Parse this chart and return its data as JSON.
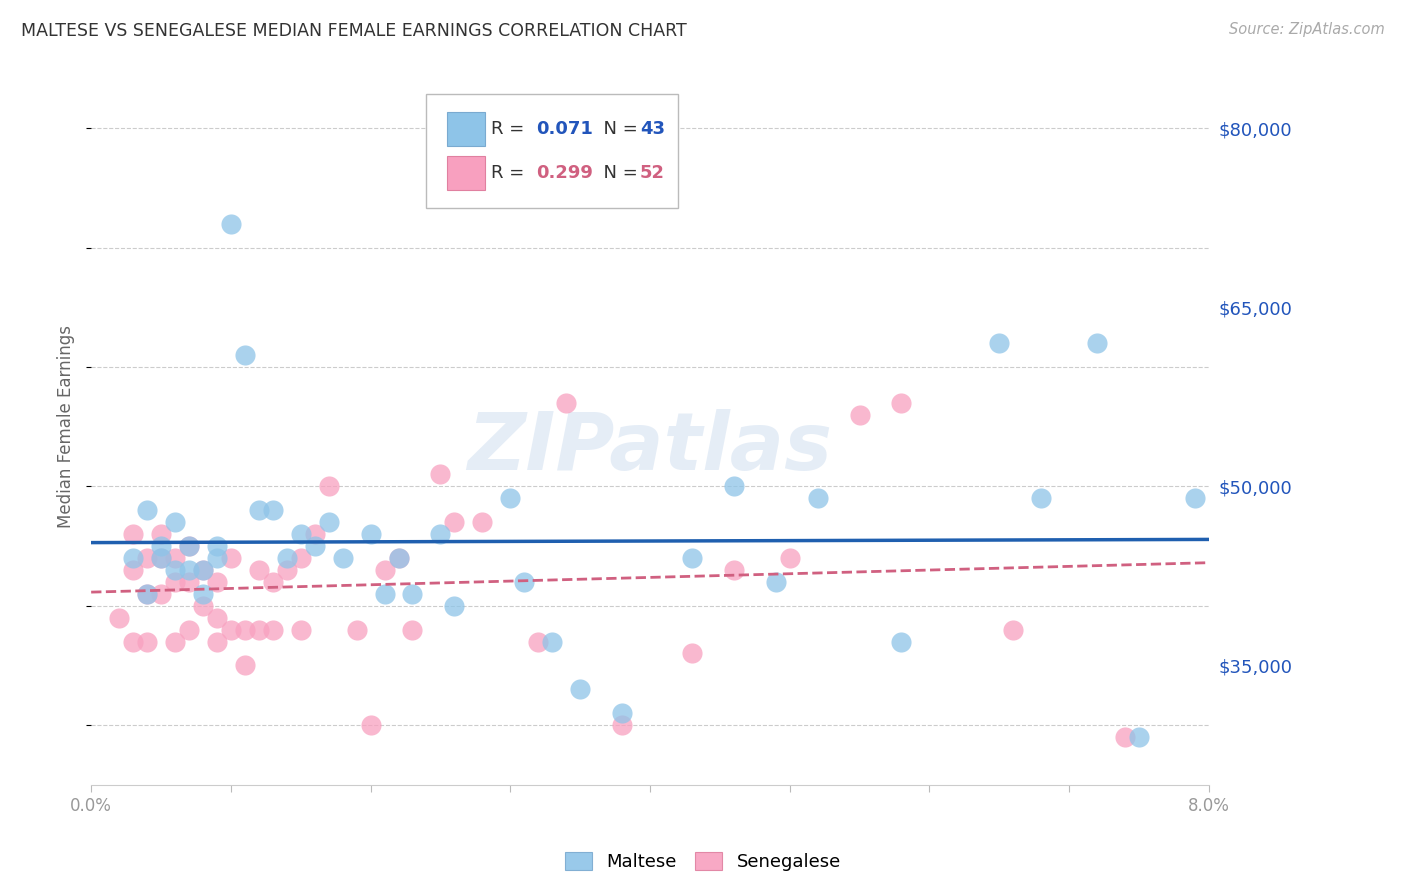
{
  "title": "MALTESE VS SENEGALESE MEDIAN FEMALE EARNINGS CORRELATION CHART",
  "source": "Source: ZipAtlas.com",
  "ylabel": "Median Female Earnings",
  "yticks": [
    35000,
    50000,
    65000,
    80000
  ],
  "ytick_labels": [
    "$35,000",
    "$50,000",
    "$65,000",
    "$80,000"
  ],
  "legend_r1": "0.071",
  "legend_n1": "43",
  "legend_r2": "0.299",
  "legend_n2": "52",
  "maltese_color": "#8ec4e8",
  "senegalese_color": "#f8a0bf",
  "trendline_maltese_color": "#1f5faf",
  "trendline_senegalese_color": "#d06080",
  "ylabel_color": "#666666",
  "ytick_color": "#2255bb",
  "xtick_color": "#999999",
  "title_color": "#333333",
  "source_color": "#aaaaaa",
  "watermark_color": "#d0dff0",
  "maltese_x": [
    0.003,
    0.004,
    0.004,
    0.005,
    0.005,
    0.006,
    0.006,
    0.007,
    0.007,
    0.008,
    0.008,
    0.009,
    0.009,
    0.01,
    0.011,
    0.012,
    0.013,
    0.014,
    0.015,
    0.016,
    0.017,
    0.018,
    0.02,
    0.021,
    0.022,
    0.023,
    0.025,
    0.026,
    0.03,
    0.031,
    0.033,
    0.035,
    0.038,
    0.043,
    0.046,
    0.049,
    0.052,
    0.058,
    0.065,
    0.068,
    0.072,
    0.075,
    0.079
  ],
  "maltese_y": [
    44000,
    48000,
    41000,
    45000,
    44000,
    47000,
    43000,
    43000,
    45000,
    43000,
    41000,
    45000,
    44000,
    72000,
    61000,
    48000,
    48000,
    44000,
    46000,
    45000,
    47000,
    44000,
    46000,
    41000,
    44000,
    41000,
    46000,
    40000,
    49000,
    42000,
    37000,
    33000,
    31000,
    44000,
    50000,
    42000,
    49000,
    37000,
    62000,
    49000,
    62000,
    29000,
    49000
  ],
  "senegalese_x": [
    0.002,
    0.003,
    0.003,
    0.003,
    0.004,
    0.004,
    0.004,
    0.005,
    0.005,
    0.005,
    0.006,
    0.006,
    0.006,
    0.007,
    0.007,
    0.007,
    0.008,
    0.008,
    0.009,
    0.009,
    0.009,
    0.01,
    0.01,
    0.011,
    0.011,
    0.012,
    0.012,
    0.013,
    0.013,
    0.014,
    0.015,
    0.015,
    0.016,
    0.017,
    0.019,
    0.02,
    0.021,
    0.022,
    0.023,
    0.025,
    0.026,
    0.028,
    0.032,
    0.034,
    0.038,
    0.043,
    0.046,
    0.05,
    0.055,
    0.058,
    0.066,
    0.074
  ],
  "senegalese_y": [
    39000,
    46000,
    43000,
    37000,
    44000,
    41000,
    37000,
    46000,
    44000,
    41000,
    44000,
    42000,
    37000,
    45000,
    42000,
    38000,
    43000,
    40000,
    42000,
    39000,
    37000,
    44000,
    38000,
    38000,
    35000,
    43000,
    38000,
    42000,
    38000,
    43000,
    44000,
    38000,
    46000,
    50000,
    38000,
    30000,
    43000,
    44000,
    38000,
    51000,
    47000,
    47000,
    37000,
    57000,
    30000,
    36000,
    43000,
    44000,
    56000,
    57000,
    38000,
    29000
  ],
  "xlim": [
    0.0,
    0.08
  ],
  "ylim": [
    25000,
    85000
  ],
  "xtick_positions": [
    0.0,
    0.01,
    0.02,
    0.03,
    0.04,
    0.05,
    0.06,
    0.07,
    0.08
  ],
  "xtick_labels_show": [
    "0.0%",
    "",
    "",
    "",
    "",
    "",
    "",
    "",
    "8.0%"
  ]
}
